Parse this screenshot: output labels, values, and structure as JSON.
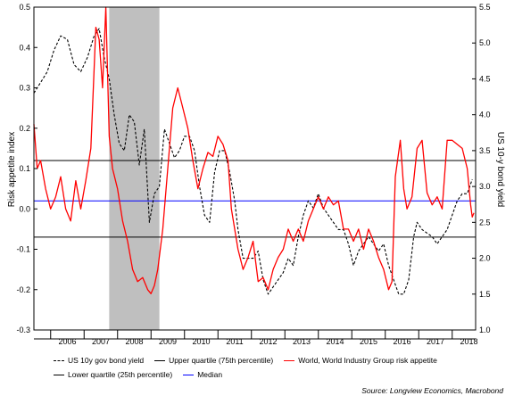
{
  "chart_data": {
    "type": "line",
    "ylabel": "Risk appetite index",
    "y2label": "US 10-y bond yield",
    "ylim": [
      -0.3,
      0.5
    ],
    "y2lim": [
      1.0,
      5.5
    ],
    "xlim": [
      2005.5,
      2018.7
    ],
    "y_ticks": [
      "0.5",
      "0.4",
      "0.3",
      "0.2",
      "0.1",
      "0.0",
      "-0.1",
      "-0.2",
      "-0.3"
    ],
    "y2_ticks": [
      "5.5",
      "5.0",
      "4.5",
      "4.0",
      "3.5",
      "3.0",
      "2.5",
      "2.0",
      "1.5",
      "1.0"
    ],
    "x_ticks": [
      "2006",
      "2007",
      "2008",
      "2009",
      "2010",
      "2011",
      "2012",
      "2013",
      "2014",
      "2015",
      "2016",
      "2017",
      "2018"
    ],
    "recession_shading": [
      2007.75,
      2009.25
    ],
    "reference_lines": [
      {
        "name": "Upper quartile (75th percentile)",
        "value": 0.12,
        "color": "#000000"
      },
      {
        "name": "Median",
        "value": 0.02,
        "color": "#0000ff"
      },
      {
        "name": "Lower quartile (25th percentile)",
        "value": -0.07,
        "color": "#000000"
      }
    ],
    "series": [
      {
        "name": "US 10y gov bond yield",
        "axis": "right",
        "color": "#000000",
        "style": "dashed",
        "x": [
          2005.5,
          2005.7,
          2005.9,
          2006.1,
          2006.3,
          2006.5,
          2006.7,
          2006.9,
          2007.1,
          2007.3,
          2007.45,
          2007.6,
          2007.75,
          2007.9,
          2008.05,
          2008.2,
          2008.35,
          2008.5,
          2008.65,
          2008.8,
          2008.95,
          2009.1,
          2009.25,
          2009.4,
          2009.55,
          2009.7,
          2009.85,
          2010.0,
          2010.15,
          2010.3,
          2010.45,
          2010.6,
          2010.75,
          2010.9,
          2011.05,
          2011.2,
          2011.35,
          2011.5,
          2011.6,
          2011.75,
          2011.9,
          2012.05,
          2012.2,
          2012.35,
          2012.5,
          2012.65,
          2012.8,
          2012.95,
          2013.1,
          2013.25,
          2013.4,
          2013.55,
          2013.7,
          2013.85,
          2014.0,
          2014.15,
          2014.3,
          2014.45,
          2014.6,
          2014.75,
          2014.9,
          2015.05,
          2015.2,
          2015.35,
          2015.5,
          2015.65,
          2015.8,
          2015.95,
          2016.1,
          2016.25,
          2016.4,
          2016.55,
          2016.7,
          2016.85,
          2016.95,
          2017.1,
          2017.25,
          2017.4,
          2017.55,
          2017.7,
          2017.85,
          2018.0,
          2018.15,
          2018.3,
          2018.45,
          2018.6
        ],
        "values": [
          4.3,
          4.45,
          4.6,
          4.9,
          5.1,
          5.05,
          4.7,
          4.6,
          4.8,
          5.1,
          5.2,
          4.8,
          4.5,
          4.0,
          3.6,
          3.5,
          4.0,
          3.9,
          3.3,
          3.8,
          2.5,
          2.9,
          3.0,
          3.8,
          3.6,
          3.4,
          3.5,
          3.7,
          3.7,
          3.5,
          3.0,
          2.6,
          2.5,
          3.2,
          3.5,
          3.5,
          3.2,
          2.8,
          2.4,
          2.0,
          2.0,
          2.0,
          2.1,
          1.7,
          1.5,
          1.6,
          1.7,
          1.8,
          2.0,
          1.9,
          2.3,
          2.6,
          2.8,
          2.7,
          2.9,
          2.7,
          2.6,
          2.5,
          2.4,
          2.4,
          2.2,
          1.9,
          2.1,
          2.2,
          2.3,
          2.2,
          2.1,
          2.2,
          1.9,
          1.7,
          1.5,
          1.5,
          1.7,
          2.3,
          2.5,
          2.4,
          2.35,
          2.3,
          2.2,
          2.3,
          2.4,
          2.6,
          2.8,
          2.9,
          2.9,
          3.1
        ]
      },
      {
        "name": "World, World Industry Group risk appetite",
        "axis": "left",
        "color": "#ff0000",
        "style": "solid",
        "x": [
          2005.5,
          2005.6,
          2005.7,
          2005.85,
          2006.0,
          2006.15,
          2006.3,
          2006.45,
          2006.6,
          2006.75,
          2006.9,
          2007.05,
          2007.2,
          2007.35,
          2007.45,
          2007.55,
          2007.65,
          2007.75,
          2007.85,
          2008.0,
          2008.15,
          2008.3,
          2008.45,
          2008.6,
          2008.75,
          2008.9,
          2009.0,
          2009.1,
          2009.2,
          2009.35,
          2009.5,
          2009.65,
          2009.8,
          2009.95,
          2010.1,
          2010.25,
          2010.4,
          2010.55,
          2010.7,
          2010.85,
          2011.0,
          2011.15,
          2011.3,
          2011.4,
          2011.5,
          2011.6,
          2011.75,
          2011.9,
          2012.05,
          2012.2,
          2012.35,
          2012.5,
          2012.65,
          2012.8,
          2012.95,
          2013.1,
          2013.25,
          2013.4,
          2013.55,
          2013.7,
          2013.85,
          2014.0,
          2014.15,
          2014.3,
          2014.45,
          2014.6,
          2014.75,
          2014.9,
          2015.05,
          2015.2,
          2015.35,
          2015.5,
          2015.65,
          2015.8,
          2015.95,
          2016.1,
          2016.2,
          2016.3,
          2016.45,
          2016.55,
          2016.65,
          2016.8,
          2016.95,
          2017.1,
          2017.25,
          2017.4,
          2017.55,
          2017.7,
          2017.85,
          2018.0,
          2018.15,
          2018.3,
          2018.45,
          2018.55,
          2018.6,
          2018.65
        ],
        "values": [
          0.21,
          0.1,
          0.12,
          0.05,
          0.0,
          0.03,
          0.08,
          0.0,
          -0.03,
          0.07,
          0.0,
          0.07,
          0.15,
          0.45,
          0.42,
          0.3,
          0.5,
          0.18,
          0.1,
          0.05,
          -0.03,
          -0.08,
          -0.15,
          -0.18,
          -0.17,
          -0.2,
          -0.21,
          -0.19,
          -0.15,
          -0.05,
          0.1,
          0.25,
          0.3,
          0.25,
          0.2,
          0.12,
          0.05,
          0.1,
          0.14,
          0.13,
          0.18,
          0.16,
          0.12,
          0.0,
          -0.05,
          -0.1,
          -0.15,
          -0.12,
          -0.08,
          -0.18,
          -0.17,
          -0.2,
          -0.15,
          -0.12,
          -0.1,
          -0.05,
          -0.08,
          -0.05,
          -0.08,
          -0.03,
          0.0,
          0.03,
          0.0,
          0.03,
          0.01,
          0.02,
          -0.05,
          -0.05,
          -0.08,
          -0.05,
          -0.1,
          -0.05,
          -0.08,
          -0.12,
          -0.15,
          -0.2,
          -0.18,
          0.08,
          0.17,
          0.05,
          0.0,
          0.03,
          0.15,
          0.17,
          0.04,
          0.01,
          0.03,
          0.0,
          0.17,
          0.17,
          0.16,
          0.15,
          0.1,
          0.01,
          -0.02,
          -0.01
        ]
      }
    ],
    "legend": {
      "row1": [
        "US 10y gov bond yield",
        "Upper quartile (75th percentile)",
        "World, World Industry Group risk appetite"
      ],
      "row2": [
        "Lower quartile (25th percentile)",
        "Median"
      ]
    },
    "source": "Source: Longview Economics, Macrobond"
  }
}
